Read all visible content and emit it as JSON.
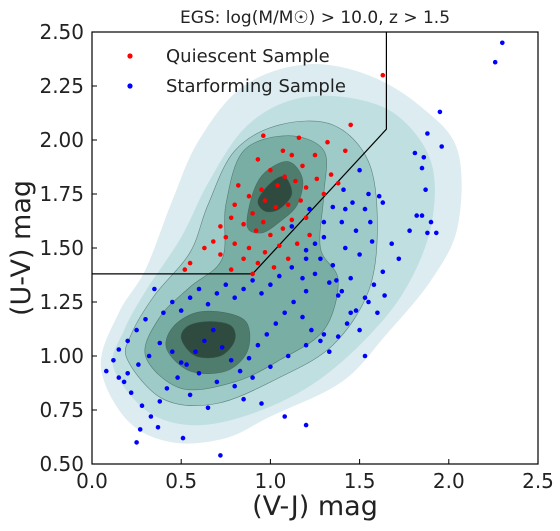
{
  "chart_data": {
    "type": "scatter",
    "title": "EGS: log(M/M☉) > 10.0, z > 1.5",
    "xlabel": "(V-J) mag",
    "ylabel": "(U-V) mag",
    "xlim": [
      0.0,
      2.5
    ],
    "ylim": [
      0.5,
      2.5
    ],
    "xticks": [
      "0.0",
      "0.5",
      "1.0",
      "1.5",
      "2.0",
      "2.5"
    ],
    "yticks": [
      "0.50",
      "0.75",
      "1.00",
      "1.25",
      "1.50",
      "1.75",
      "2.00",
      "2.25",
      "2.50"
    ],
    "grid": false,
    "legend_position": "top-left",
    "colors": {
      "quiescent": "#ff0000",
      "starforming": "#0000ff",
      "contour_levels": [
        "#dcecf0",
        "#bfdfe1",
        "#9ecbc7",
        "#78aea4",
        "#4e7d6e",
        "#2f4b3f"
      ]
    },
    "selection_boundary": [
      [
        0.0,
        1.38
      ],
      [
        0.9,
        1.38
      ],
      [
        1.65,
        2.05
      ],
      [
        1.65,
        2.5
      ]
    ],
    "density_contours": [
      {
        "level": 1,
        "points": [
          [
            0.05,
            0.95
          ],
          [
            0.2,
            0.7
          ],
          [
            0.45,
            0.6
          ],
          [
            0.75,
            0.62
          ],
          [
            1.0,
            0.72
          ],
          [
            1.4,
            0.88
          ],
          [
            1.65,
            1.1
          ],
          [
            1.9,
            1.35
          ],
          [
            2.05,
            1.6
          ],
          [
            2.05,
            1.95
          ],
          [
            1.85,
            2.15
          ],
          [
            1.55,
            2.3
          ],
          [
            1.2,
            2.35
          ],
          [
            0.85,
            2.25
          ],
          [
            0.6,
            2.0
          ],
          [
            0.45,
            1.72
          ],
          [
            0.3,
            1.4
          ],
          [
            0.15,
            1.2
          ]
        ]
      },
      {
        "level": 2,
        "points": [
          [
            0.12,
            0.95
          ],
          [
            0.3,
            0.75
          ],
          [
            0.55,
            0.68
          ],
          [
            0.85,
            0.72
          ],
          [
            1.2,
            0.85
          ],
          [
            1.5,
            1.05
          ],
          [
            1.75,
            1.3
          ],
          [
            1.9,
            1.6
          ],
          [
            1.9,
            1.9
          ],
          [
            1.7,
            2.12
          ],
          [
            1.4,
            2.2
          ],
          [
            1.1,
            2.18
          ],
          [
            0.85,
            2.05
          ],
          [
            0.65,
            1.8
          ],
          [
            0.5,
            1.55
          ],
          [
            0.3,
            1.3
          ],
          [
            0.18,
            1.12
          ]
        ]
      },
      {
        "level": 3,
        "points": [
          [
            0.2,
            0.98
          ],
          [
            0.4,
            0.8
          ],
          [
            0.7,
            0.78
          ],
          [
            1.05,
            0.9
          ],
          [
            1.35,
            1.05
          ],
          [
            1.55,
            1.3
          ],
          [
            1.6,
            1.6
          ],
          [
            1.55,
            1.9
          ],
          [
            1.35,
            2.07
          ],
          [
            1.05,
            2.07
          ],
          [
            0.8,
            1.95
          ],
          [
            0.65,
            1.7
          ],
          [
            0.55,
            1.48
          ],
          [
            0.35,
            1.28
          ],
          [
            0.22,
            1.1
          ]
        ]
      },
      {
        "level": 4,
        "points": [
          [
            0.3,
            1.0
          ],
          [
            0.5,
            0.85
          ],
          [
            0.8,
            0.88
          ],
          [
            1.05,
            0.98
          ],
          [
            1.3,
            1.12
          ],
          [
            1.38,
            1.35
          ],
          [
            1.28,
            1.5
          ],
          [
            1.3,
            1.75
          ],
          [
            1.3,
            1.95
          ],
          [
            1.1,
            2.02
          ],
          [
            0.85,
            1.95
          ],
          [
            0.75,
            1.7
          ],
          [
            0.73,
            1.45
          ],
          [
            0.55,
            1.32
          ],
          [
            0.38,
            1.18
          ]
        ]
      },
      {
        "level": 5,
        "points": [
          [
            0.42,
            1.03
          ],
          [
            0.55,
            0.93
          ],
          [
            0.75,
            0.93
          ],
          [
            0.87,
            1.02
          ],
          [
            0.87,
            1.15
          ],
          [
            0.75,
            1.2
          ],
          [
            0.58,
            1.2
          ],
          [
            0.45,
            1.13
          ]
        ]
      },
      {
        "level": 5,
        "points": [
          [
            0.87,
            1.6
          ],
          [
            0.9,
            1.75
          ],
          [
            0.97,
            1.85
          ],
          [
            1.1,
            1.9
          ],
          [
            1.18,
            1.82
          ],
          [
            1.15,
            1.7
          ],
          [
            1.05,
            1.62
          ],
          [
            0.95,
            1.57
          ]
        ]
      },
      {
        "level": 6,
        "points": [
          [
            0.5,
            1.08
          ],
          [
            0.58,
            1.0
          ],
          [
            0.72,
            1.0
          ],
          [
            0.8,
            1.07
          ],
          [
            0.78,
            1.14
          ],
          [
            0.66,
            1.16
          ],
          [
            0.54,
            1.14
          ]
        ]
      },
      {
        "level": 6,
        "points": [
          [
            0.93,
            1.72
          ],
          [
            1.0,
            1.8
          ],
          [
            1.08,
            1.83
          ],
          [
            1.12,
            1.75
          ],
          [
            1.05,
            1.68
          ],
          [
            0.97,
            1.67
          ]
        ]
      }
    ],
    "series": [
      {
        "name": "Quiescent Sample",
        "color": "#ff0000",
        "points": [
          [
            1.63,
            2.3
          ],
          [
            0.96,
            2.02
          ],
          [
            1.16,
            2.01
          ],
          [
            1.32,
            1.99
          ],
          [
            1.45,
            2.07
          ],
          [
            1.07,
            1.95
          ],
          [
            1.25,
            1.93
          ],
          [
            1.18,
            1.88
          ],
          [
            0.93,
            1.91
          ],
          [
            1.0,
            1.86
          ],
          [
            1.08,
            1.83
          ],
          [
            1.14,
            1.81
          ],
          [
            1.04,
            1.79
          ],
          [
            0.95,
            1.77
          ],
          [
            0.88,
            1.74
          ],
          [
            0.82,
            1.79
          ],
          [
            1.2,
            1.78
          ],
          [
            1.26,
            1.82
          ],
          [
            1.34,
            1.84
          ],
          [
            0.97,
            1.72
          ],
          [
            1.03,
            1.69
          ],
          [
            1.1,
            1.7
          ],
          [
            1.17,
            1.72
          ],
          [
            0.9,
            1.66
          ],
          [
            0.85,
            1.61
          ],
          [
            0.78,
            1.64
          ],
          [
            1.12,
            1.63
          ],
          [
            1.2,
            1.64
          ],
          [
            0.92,
            1.58
          ],
          [
            1.0,
            1.56
          ],
          [
            1.07,
            1.59
          ],
          [
            0.75,
            1.55
          ],
          [
            0.8,
            1.52
          ],
          [
            0.88,
            1.5
          ],
          [
            0.97,
            1.48
          ],
          [
            1.05,
            1.51
          ],
          [
            1.1,
            1.45
          ],
          [
            0.93,
            1.43
          ],
          [
            0.85,
            1.45
          ],
          [
            0.72,
            1.47
          ],
          [
            0.68,
            1.53
          ],
          [
            1.02,
            1.41
          ],
          [
            0.78,
            1.4
          ],
          [
            0.63,
            1.5
          ],
          [
            0.55,
            1.43
          ],
          [
            0.52,
            1.4
          ],
          [
            0.9,
            1.38
          ],
          [
            0.96,
            1.62
          ],
          [
            1.22,
            1.56
          ],
          [
            1.15,
            1.52
          ],
          [
            0.8,
            1.7
          ],
          [
            0.72,
            1.6
          ],
          [
            1.3,
            1.75
          ],
          [
            1.42,
            1.95
          ],
          [
            1.38,
            1.8
          ],
          [
            1.12,
            1.93
          ]
        ]
      },
      {
        "name": "Starforming Sample",
        "color": "#0000ff",
        "points": [
          [
            2.3,
            2.45
          ],
          [
            2.26,
            2.36
          ],
          [
            1.88,
            2.03
          ],
          [
            1.95,
            2.13
          ],
          [
            1.96,
            1.97
          ],
          [
            1.81,
            1.94
          ],
          [
            1.86,
            1.92
          ],
          [
            1.85,
            1.87
          ],
          [
            1.87,
            1.77
          ],
          [
            1.5,
            1.86
          ],
          [
            1.63,
            1.71
          ],
          [
            1.61,
            1.74
          ],
          [
            1.55,
            1.75
          ],
          [
            1.53,
            1.68
          ],
          [
            1.56,
            1.62
          ],
          [
            1.48,
            1.58
          ],
          [
            1.46,
            1.71
          ],
          [
            1.41,
            1.77
          ],
          [
            1.35,
            1.69
          ],
          [
            1.4,
            1.62
          ],
          [
            1.3,
            1.55
          ],
          [
            1.25,
            1.52
          ],
          [
            1.2,
            1.49
          ],
          [
            1.28,
            1.45
          ],
          [
            1.35,
            1.42
          ],
          [
            1.42,
            1.5
          ],
          [
            1.5,
            1.47
          ],
          [
            1.45,
            1.36
          ],
          [
            1.4,
            1.3
          ],
          [
            1.33,
            1.34
          ],
          [
            1.25,
            1.38
          ],
          [
            1.18,
            1.36
          ],
          [
            1.12,
            1.41
          ],
          [
            1.05,
            1.37
          ],
          [
            1.0,
            1.33
          ],
          [
            0.95,
            1.29
          ],
          [
            0.9,
            1.35
          ],
          [
            0.85,
            1.31
          ],
          [
            0.8,
            1.27
          ],
          [
            0.75,
            1.33
          ],
          [
            0.7,
            1.29
          ],
          [
            0.65,
            1.24
          ],
          [
            0.6,
            1.31
          ],
          [
            0.55,
            1.27
          ],
          [
            0.5,
            1.21
          ],
          [
            0.45,
            1.25
          ],
          [
            0.4,
            1.2
          ],
          [
            0.35,
            1.31
          ],
          [
            0.3,
            1.17
          ],
          [
            0.25,
            1.12
          ],
          [
            0.2,
            1.07
          ],
          [
            0.15,
            1.03
          ],
          [
            0.12,
            0.98
          ],
          [
            0.08,
            0.93
          ],
          [
            0.18,
            0.88
          ],
          [
            0.22,
            0.83
          ],
          [
            0.28,
            0.77
          ],
          [
            0.33,
            0.72
          ],
          [
            0.38,
            0.79
          ],
          [
            0.42,
            0.85
          ],
          [
            0.48,
            0.9
          ],
          [
            0.53,
            0.96
          ],
          [
            0.58,
            1.02
          ],
          [
            0.63,
            1.07
          ],
          [
            0.68,
            1.12
          ],
          [
            0.73,
            1.04
          ],
          [
            0.78,
            0.98
          ],
          [
            0.83,
            0.93
          ],
          [
            0.88,
            0.99
          ],
          [
            0.93,
            1.05
          ],
          [
            0.98,
            1.1
          ],
          [
            1.03,
            1.15
          ],
          [
            1.08,
            1.2
          ],
          [
            1.13,
            1.25
          ],
          [
            1.18,
            1.18
          ],
          [
            1.23,
            1.12
          ],
          [
            1.28,
            1.07
          ],
          [
            1.33,
            1.02
          ],
          [
            1.38,
            1.09
          ],
          [
            1.43,
            1.15
          ],
          [
            1.48,
            1.21
          ],
          [
            1.53,
            1.27
          ],
          [
            1.58,
            1.33
          ],
          [
            1.63,
            1.39
          ],
          [
            1.9,
            1.62
          ],
          [
            1.93,
            1.57
          ],
          [
            1.88,
            1.57
          ],
          [
            1.82,
            1.65
          ],
          [
            1.78,
            1.58
          ],
          [
            1.72,
            1.45
          ],
          [
            1.68,
            1.52
          ],
          [
            1.85,
            1.65
          ],
          [
            1.6,
            1.2
          ],
          [
            1.55,
            1.25
          ],
          [
            1.38,
            1.28
          ],
          [
            1.45,
            1.2
          ],
          [
            1.3,
            1.1
          ],
          [
            1.2,
            1.05
          ],
          [
            1.1,
            1.0
          ],
          [
            1.0,
            0.95
          ],
          [
            0.9,
            0.9
          ],
          [
            0.8,
            0.86
          ],
          [
            0.7,
            0.88
          ],
          [
            0.6,
            0.92
          ],
          [
            0.5,
            0.97
          ],
          [
            0.45,
            1.02
          ],
          [
            0.38,
            1.06
          ],
          [
            0.32,
            1.0
          ],
          [
            0.26,
            0.96
          ],
          [
            0.2,
            0.92
          ],
          [
            0.15,
            0.9
          ],
          [
            0.27,
            0.66
          ],
          [
            0.37,
            0.67
          ],
          [
            0.51,
            0.62
          ],
          [
            0.25,
            0.6
          ],
          [
            0.72,
            0.54
          ],
          [
            1.08,
            0.72
          ],
          [
            1.2,
            0.68
          ],
          [
            0.95,
            0.78
          ],
          [
            0.85,
            0.8
          ],
          [
            0.65,
            0.76
          ],
          [
            0.55,
            0.82
          ],
          [
            1.2,
            1.45
          ],
          [
            1.5,
            1.12
          ],
          [
            1.64,
            1.28
          ],
          [
            1.53,
            1.0
          ],
          [
            1.37,
            1.35
          ],
          [
            1.2,
            1.3
          ],
          [
            1.57,
            1.53
          ],
          [
            1.12,
            1.6
          ],
          [
            1.42,
            1.68
          ],
          [
            1.3,
            1.62
          ],
          [
            1.22,
            1.68
          ]
        ]
      }
    ]
  }
}
